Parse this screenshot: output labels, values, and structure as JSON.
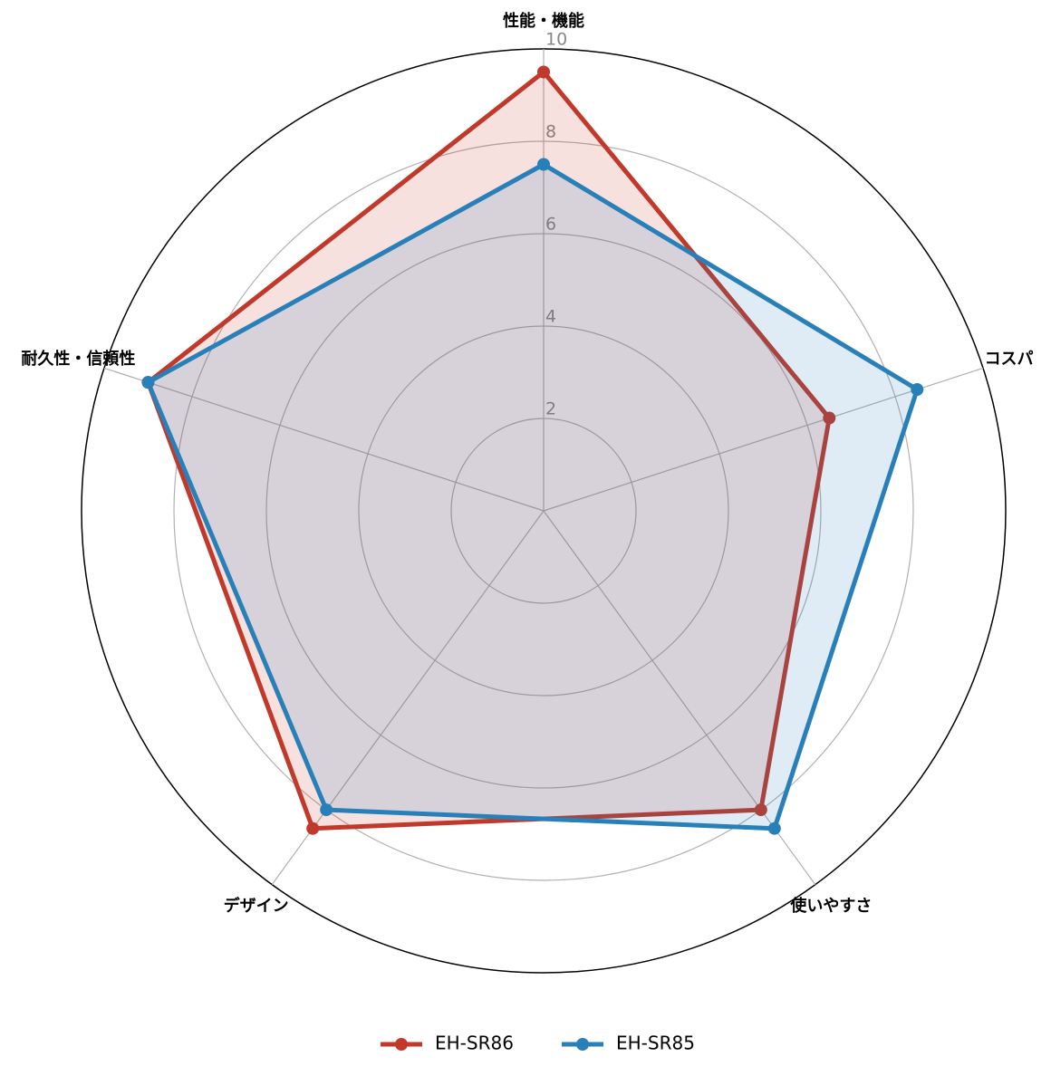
{
  "chart_data": {
    "type": "radar",
    "categories": [
      "性能・機能",
      "コスパ",
      "使いやすさ",
      "デザイン",
      "耐久性・信頼性"
    ],
    "series": [
      {
        "name": "EH-SR86",
        "color": "#c0392b",
        "values": [
          9.5,
          6.5,
          8.0,
          8.5,
          9.0
        ]
      },
      {
        "name": "EH-SR85",
        "color": "#2980b9",
        "values": [
          7.5,
          8.5,
          8.5,
          8.0,
          9.0
        ]
      }
    ],
    "ylim": [
      0,
      10
    ],
    "yticks": [
      2,
      4,
      6,
      8,
      10
    ],
    "grid": true,
    "legend": "bottom"
  }
}
